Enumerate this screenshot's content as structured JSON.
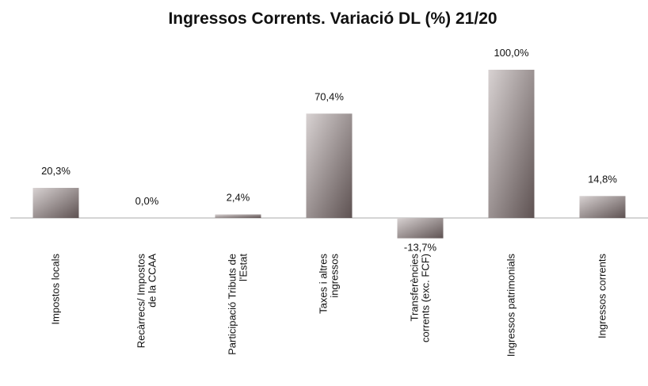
{
  "chart_data": {
    "type": "bar",
    "title": "Ingressos  Corrents. Variació DL (%) 21/20",
    "categories": [
      "Impostos locals",
      "Recàrrecs/ Impostos\nde la CCAA",
      "Participació Tributs de\nl'Estat",
      "Taxes i altres\ningressos",
      "Transferències\ncorrents (exc. FCF)",
      "Ingressos patrimonials",
      "Ingressos corrents"
    ],
    "values": [
      20.3,
      0,
      2.4,
      70.4,
      -13.7,
      100,
      14.8
    ],
    "value_labels": [
      "20,3%",
      "0,0%",
      "2,4%",
      "70,4%",
      "-13,7%",
      "100,0%",
      "14,8%"
    ],
    "color": "#5e5252"
  }
}
